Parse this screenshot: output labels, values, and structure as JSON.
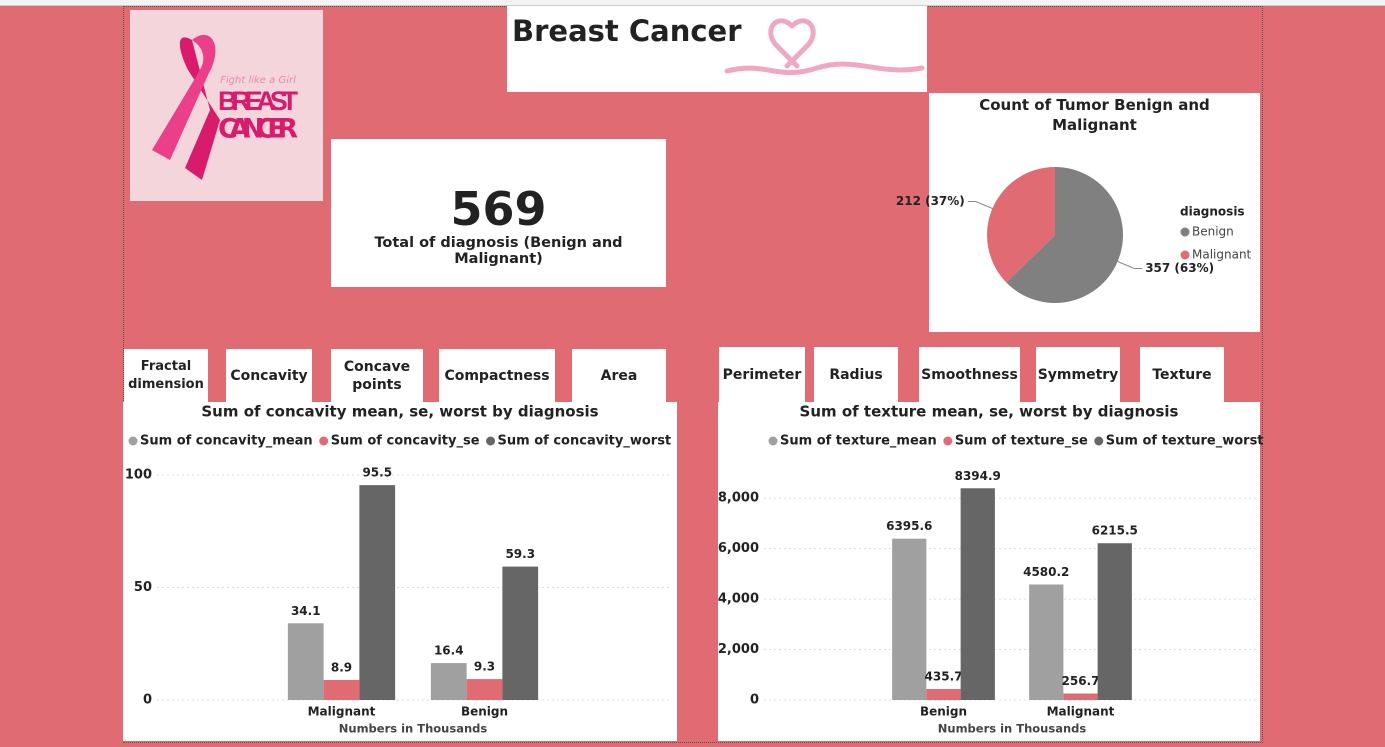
{
  "header": {
    "title": "Breast Cancer"
  },
  "logo": {
    "tagline": "Fight like a Girl",
    "line1": "BREAST",
    "line2": "CANCER"
  },
  "kpi": {
    "value": 569,
    "label": "Total of diagnosis (Benign and Malignant)"
  },
  "tabs_left": [
    "Fractal dimension",
    "Concavity",
    "Concave points",
    "Compactness",
    "Area"
  ],
  "tabs_right": [
    "Perimeter",
    "Radius",
    "Smoothness",
    "Symmetry",
    "Texture"
  ],
  "chart_data": [
    {
      "type": "pie",
      "title": "Count of Tumor Benign and Malignant",
      "legend_title": "diagnosis",
      "legend": "right",
      "categories": [
        "Benign",
        "Malignant"
      ],
      "values": [
        357,
        212
      ],
      "value_labels": [
        "357 (63%)",
        "212 (37%)"
      ],
      "colors": [
        "#808080",
        "#e06b73"
      ]
    },
    {
      "type": "bar",
      "title": "Sum of concavity mean, se, worst by diagnosis",
      "xlabel": "Numbers in Thousands",
      "legend": "top",
      "categories": [
        "Malignant",
        "Benign"
      ],
      "series": [
        {
          "name": "Sum of concavity_mean",
          "color": "#a0a0a0",
          "values": [
            34.1,
            16.4
          ]
        },
        {
          "name": "Sum of concavity_se",
          "color": "#e06b73",
          "values": [
            8.9,
            9.3
          ]
        },
        {
          "name": "Sum of concavity_worst",
          "color": "#666666",
          "values": [
            95.5,
            59.3
          ]
        }
      ],
      "ylim": [
        0,
        100
      ],
      "yticks": [
        0,
        50,
        100
      ],
      "grid": true
    },
    {
      "type": "bar",
      "title": "Sum of texture mean, se, worst by diagnosis",
      "xlabel": "Numbers in Thousands",
      "legend": "top",
      "categories": [
        "Benign",
        "Malignant"
      ],
      "series": [
        {
          "name": "Sum of texture_mean",
          "color": "#a0a0a0",
          "values": [
            6395.6,
            4580.2
          ]
        },
        {
          "name": "Sum of texture_se",
          "color": "#e06b73",
          "values": [
            435.7,
            256.7
          ]
        },
        {
          "name": "Sum of texture_worst",
          "color": "#666666",
          "values": [
            8394.9,
            6215.5
          ]
        }
      ],
      "ylim": [
        0,
        9000
      ],
      "yticks": [
        0,
        {
          "value": 2000,
          "label": "2,000"
        },
        {
          "value": 4000,
          "label": "4,000"
        },
        {
          "value": 6000,
          "label": "6,000"
        },
        {
          "value": 8000,
          "label": "8,000"
        }
      ],
      "grid": true
    }
  ]
}
